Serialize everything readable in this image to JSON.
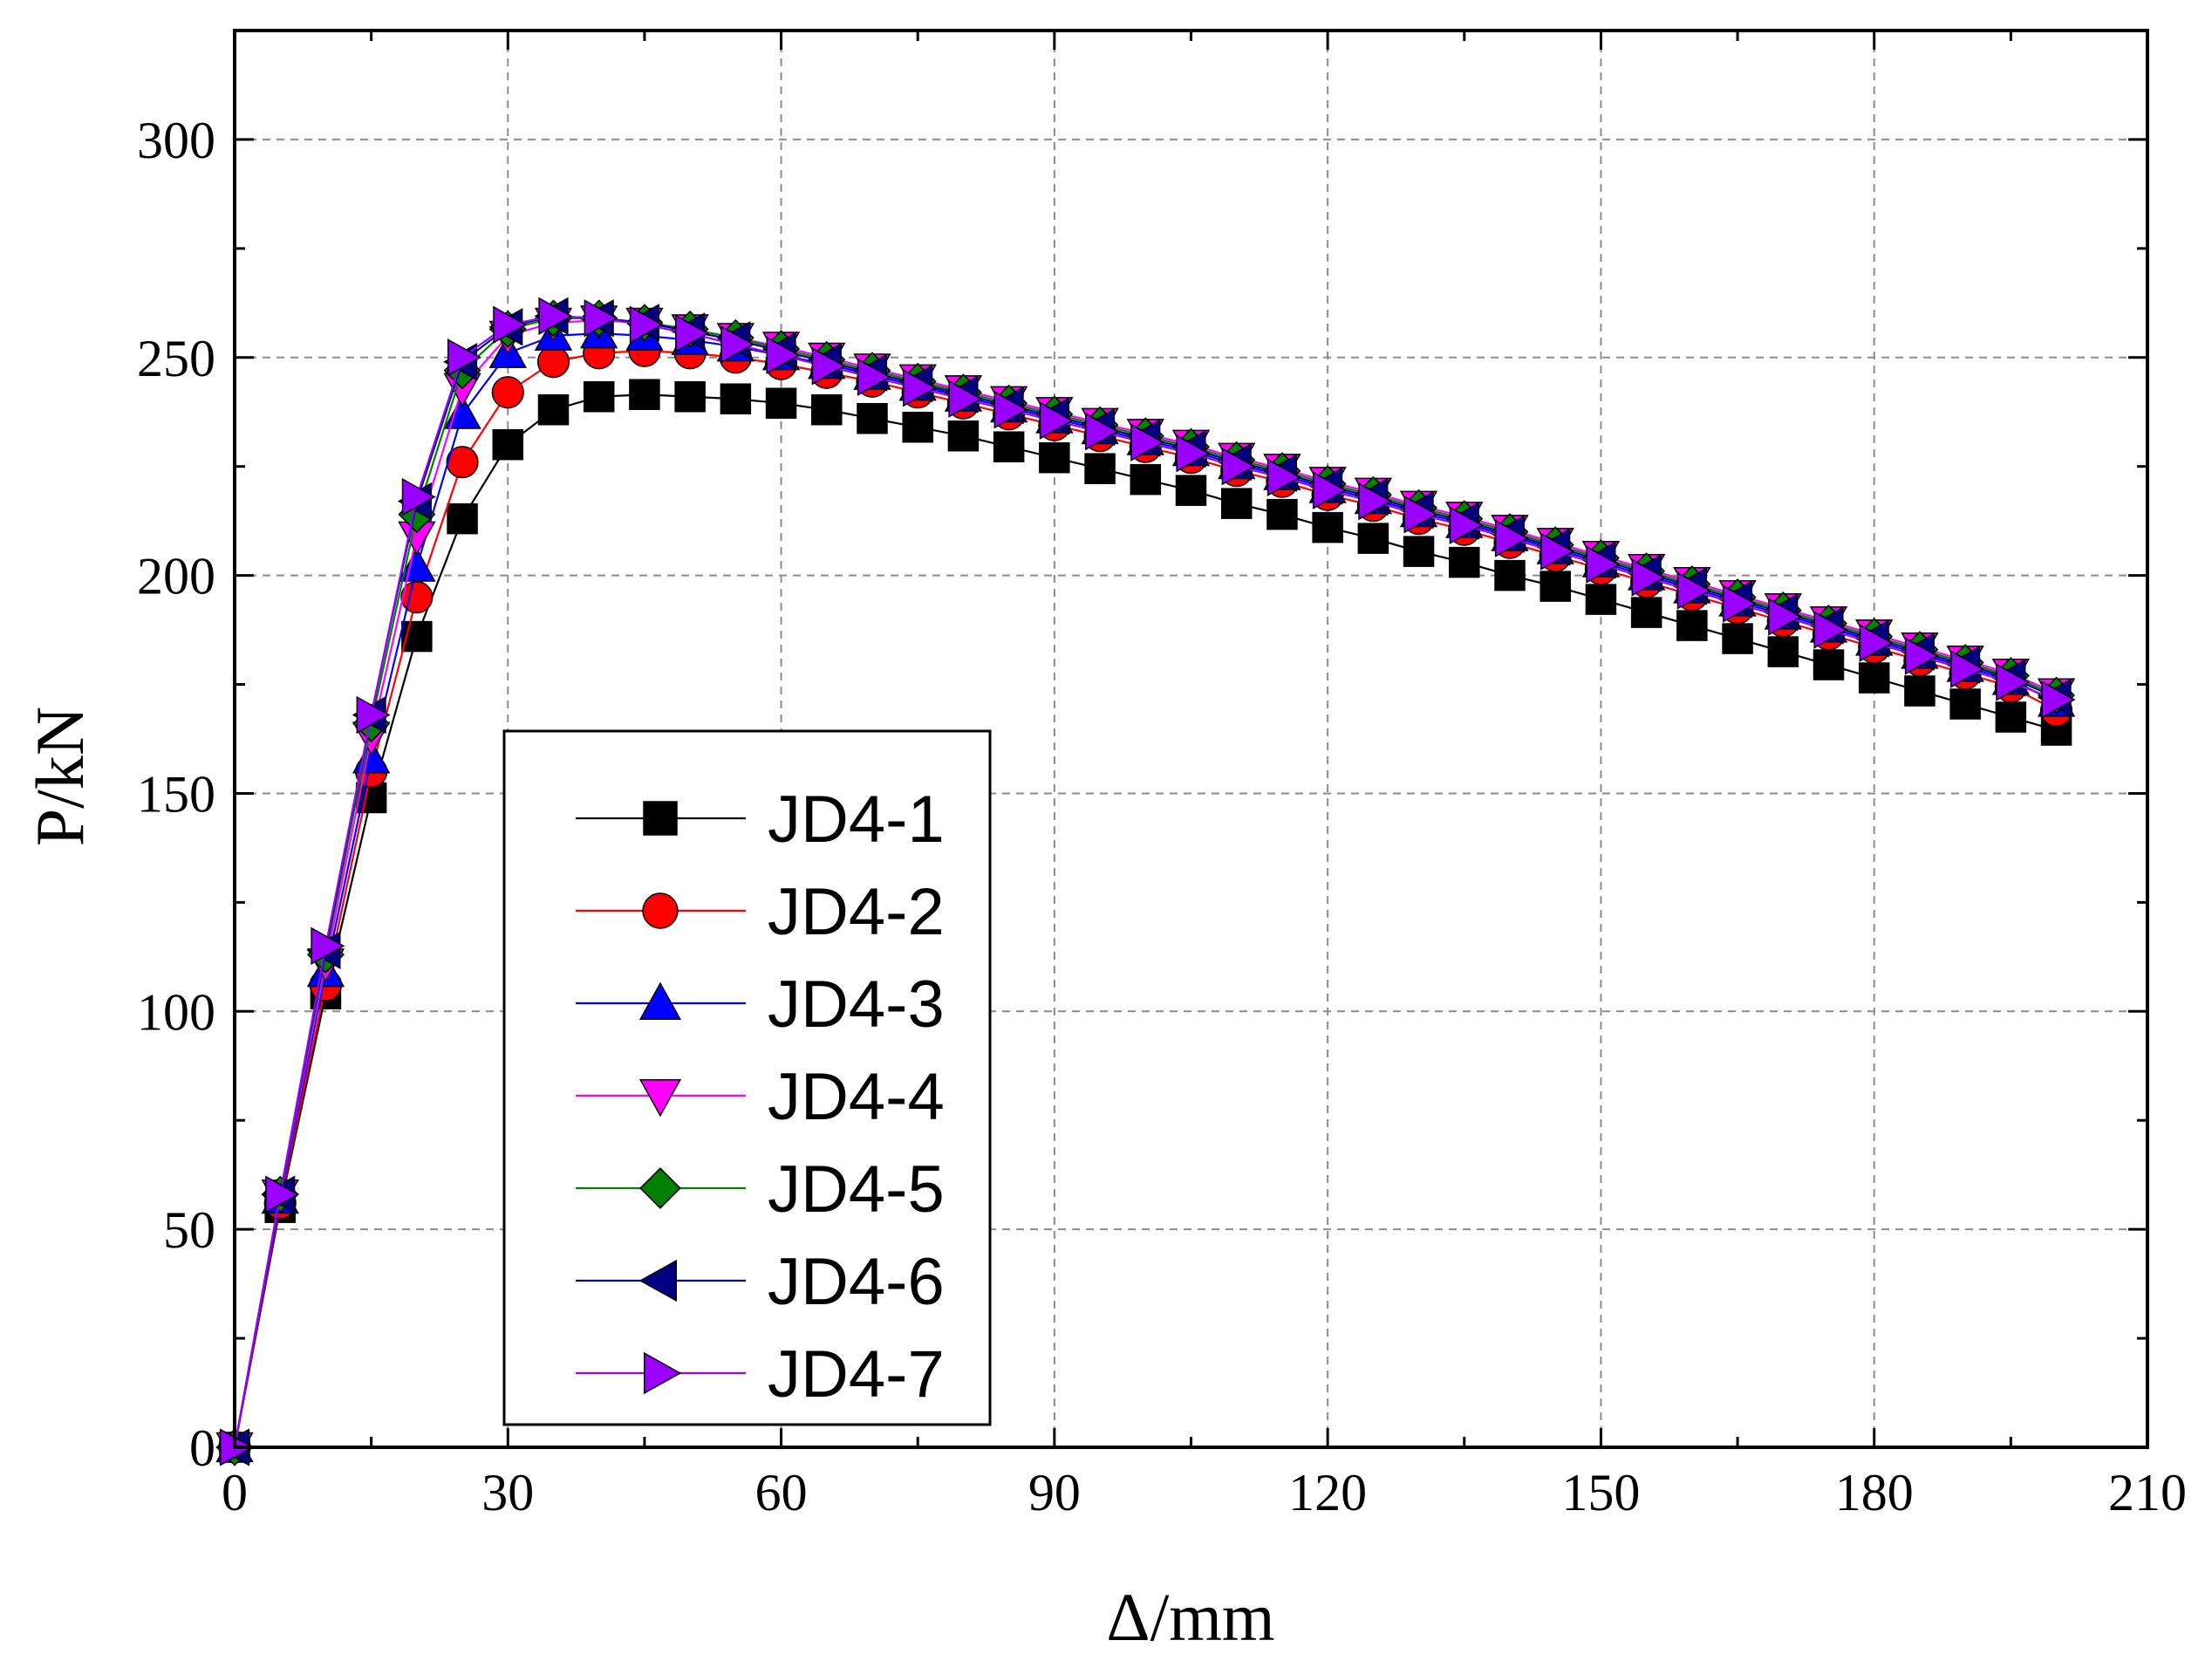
{
  "chart_data": {
    "type": "line",
    "title": "",
    "xlabel": "Δ/mm",
    "ylabel": "P/kN",
    "xlim": [
      0,
      210
    ],
    "ylim": [
      0,
      325
    ],
    "xticks": [
      0,
      30,
      60,
      90,
      120,
      150,
      180,
      210
    ],
    "yticks": [
      0,
      50,
      100,
      150,
      200,
      250,
      300
    ],
    "grid": true,
    "legend_position": "lower-left-center",
    "x": [
      0,
      5,
      10,
      15,
      20,
      25,
      30,
      35,
      40,
      45,
      50,
      55,
      60,
      65,
      70,
      75,
      80,
      85,
      90,
      95,
      100,
      105,
      110,
      115,
      120,
      125,
      130,
      135,
      140,
      145,
      150,
      155,
      160,
      165,
      170,
      175,
      180,
      185,
      190,
      195,
      200
    ],
    "series": [
      {
        "name": "JD4-1",
        "color": "#000000",
        "marker": "square",
        "values": [
          0,
          55,
          104,
          149,
          186,
          213,
          230,
          238,
          241,
          241.5,
          241,
          240.5,
          239.5,
          238,
          236,
          234,
          232,
          229.5,
          227,
          224.5,
          222,
          219.5,
          216.5,
          214,
          211,
          208.5,
          205.5,
          203,
          200,
          197.5,
          194.5,
          191.5,
          188.5,
          185.5,
          182.5,
          179.5,
          176.5,
          173.5,
          170.5,
          167.5,
          164.5
        ]
      },
      {
        "name": "JD4-2",
        "color": "#ff0000",
        "marker": "circle",
        "values": [
          0,
          56,
          106,
          155,
          195,
          226,
          242,
          249,
          251,
          251.5,
          251,
          250,
          248.5,
          246.5,
          244.5,
          242,
          239.5,
          237,
          234.5,
          232,
          229.5,
          227,
          224,
          221.5,
          218.5,
          216,
          213,
          210.5,
          207.5,
          204.5,
          201.5,
          198.5,
          195.5,
          192.5,
          189.5,
          186.5,
          183.5,
          180.5,
          177.5,
          174.5,
          169
        ]
      },
      {
        "name": "JD4-3",
        "color": "#0000ff",
        "marker": "triangle-up",
        "values": [
          0,
          57,
          109,
          158,
          202,
          237,
          251,
          255,
          255.5,
          255,
          254,
          252.5,
          250.5,
          248.5,
          246,
          243.5,
          241,
          238.5,
          236,
          233.5,
          231,
          228.5,
          225.5,
          223,
          220,
          217.5,
          214.5,
          212,
          209,
          206,
          203,
          200,
          197,
          194,
          191,
          188,
          185,
          182,
          179,
          176,
          171
        ]
      },
      {
        "name": "JD4-4",
        "color": "#ff00ff",
        "marker": "triangle-down",
        "values": [
          0,
          58,
          111,
          163,
          209,
          243,
          255,
          258,
          258.5,
          258,
          256.5,
          254.5,
          252.5,
          250,
          247.5,
          245,
          242.5,
          240,
          237.5,
          235,
          232.5,
          230,
          227,
          224.5,
          221.5,
          219,
          216,
          213.5,
          210.5,
          207.5,
          204.5,
          201.5,
          198.5,
          195.5,
          192.5,
          189.5,
          186.5,
          183.5,
          180.5,
          177.5,
          173
        ]
      },
      {
        "name": "JD4-5",
        "color": "#008000",
        "marker": "diamond",
        "values": [
          0,
          58,
          113,
          166,
          214,
          247,
          256.5,
          259,
          259,
          258,
          256.5,
          254.5,
          252,
          249.5,
          247,
          244.5,
          242,
          239.5,
          237,
          234.5,
          232,
          229.5,
          226.5,
          224,
          221,
          218.5,
          215.5,
          213,
          210,
          207,
          204,
          201,
          198,
          195,
          192,
          189,
          186,
          183,
          180,
          177,
          172.5
        ]
      },
      {
        "name": "JD4-6",
        "color": "#000080",
        "marker": "triangle-left",
        "values": [
          0,
          58,
          114,
          168,
          217,
          249,
          257,
          259.5,
          259,
          258,
          256,
          254,
          251.5,
          249,
          246.5,
          244,
          241.5,
          239,
          236.5,
          234,
          231.5,
          229,
          226,
          223.5,
          220.5,
          218,
          215,
          212.5,
          209.5,
          206.5,
          203.5,
          200.5,
          197.5,
          194.5,
          191.5,
          188.5,
          185.5,
          182.5,
          179.5,
          176.5,
          172
        ]
      },
      {
        "name": "JD4-7",
        "color": "#9900ff",
        "marker": "triangle-right",
        "values": [
          0,
          58,
          115,
          168,
          218,
          250,
          257.5,
          259.5,
          259,
          257.5,
          255.5,
          253,
          250.5,
          248,
          245.5,
          243,
          240.5,
          238,
          235.5,
          233,
          230.5,
          228,
          225,
          222.5,
          219.5,
          217,
          214,
          211.5,
          208.5,
          205.5,
          202.5,
          199.5,
          196.5,
          193.5,
          190.5,
          187.5,
          184.5,
          181.5,
          178.5,
          175.5,
          171.5
        ]
      }
    ]
  }
}
